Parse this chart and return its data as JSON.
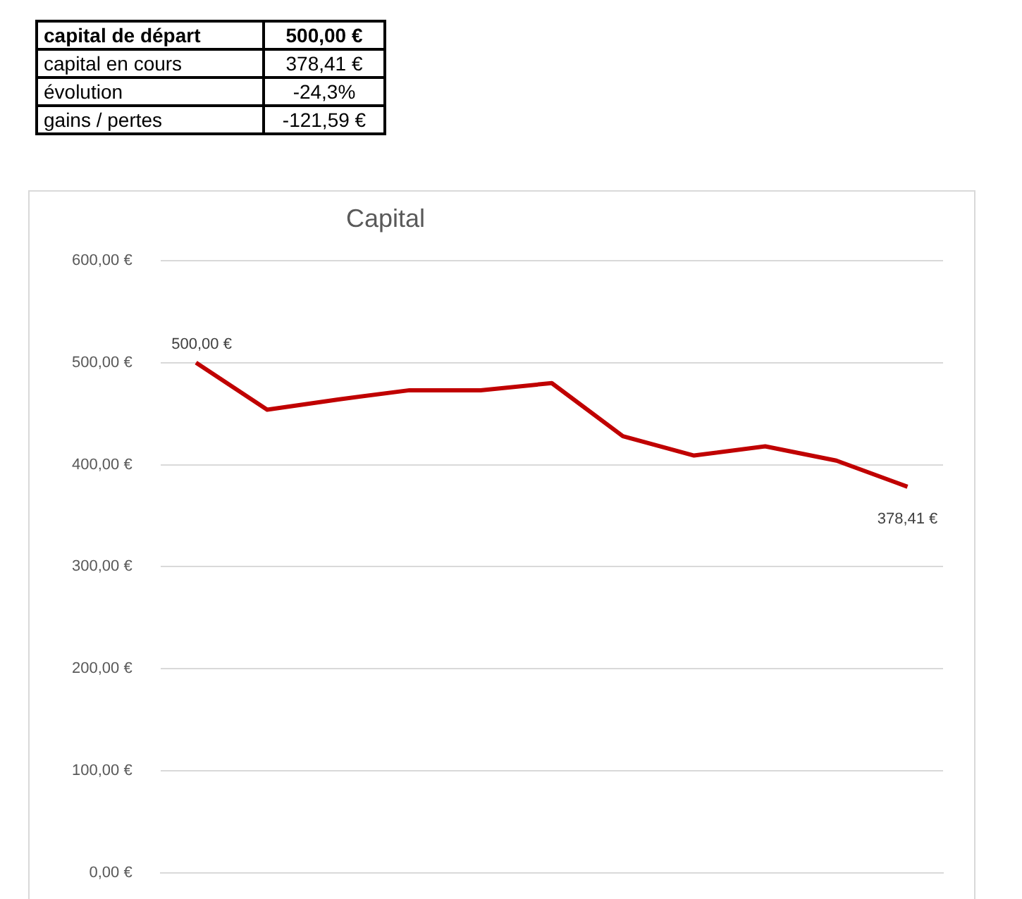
{
  "chart_data": {
    "type": "line",
    "title": "Capital",
    "categories": [
      null,
      null,
      null,
      null,
      null,
      null,
      null,
      null,
      null,
      null,
      null
    ],
    "series": [
      {
        "color": "#c00000",
        "values": [
          500,
          454,
          464,
          473,
          473,
          480,
          428,
          409,
          418,
          404,
          378.41
        ],
        "value_labels": [
          "500,00 €",
          null,
          null,
          null,
          null,
          null,
          null,
          null,
          null,
          null,
          "378,41 €"
        ]
      }
    ],
    "ylim": [
      0,
      600
    ],
    "yticks": [
      {
        "value": 0,
        "label": "0,00 €"
      },
      {
        "value": 100,
        "label": "100,00 €"
      },
      {
        "value": 200,
        "label": "200,00 €"
      },
      {
        "value": 300,
        "label": "300,00 €"
      },
      {
        "value": 400,
        "label": "400,00 €"
      },
      {
        "value": 500,
        "label": "500,00 €"
      },
      {
        "value": 600,
        "label": "600,00 €"
      }
    ],
    "grid": "y",
    "legend": false,
    "marker": "none",
    "line_style": "solid",
    "tick_labels": "y",
    "annotations": [
      "capital de départ",
      "500,00 €",
      "capital en cours",
      "378,41 €",
      "évolution",
      "-24,3%",
      "gains / pertes",
      "-121,59 €"
    ]
  }
}
